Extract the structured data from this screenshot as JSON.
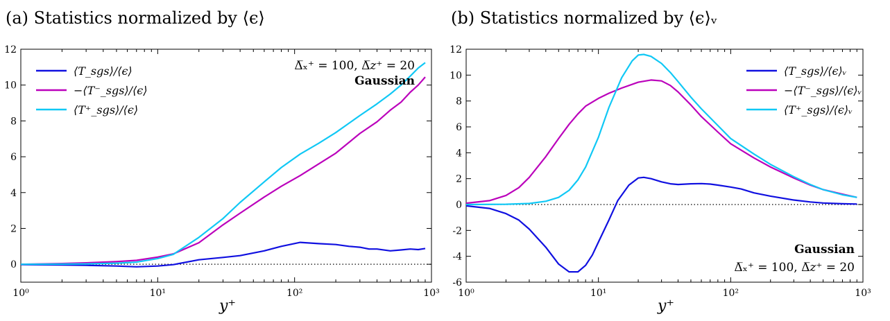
{
  "chart_data": [
    {
      "type": "line",
      "panel_title": "(a) Statistics normalized by ⟨ϵ⟩",
      "xlabel": "y⁺",
      "ylabel": "",
      "xscale": "log",
      "xlim": [
        1,
        1000
      ],
      "ylim": [
        -1,
        12
      ],
      "x_ticks": [
        1,
        10,
        100,
        1000
      ],
      "x_tick_labels": [
        "10⁰",
        "10¹",
        "10²",
        "10³"
      ],
      "y_ticks": [
        0,
        2,
        4,
        6,
        8,
        10,
        12
      ],
      "y_tick_labels": [
        "0",
        "2",
        "4",
        "6",
        "8",
        "10",
        "12"
      ],
      "grid": false,
      "legend_position": "top-left",
      "reference_line": {
        "y": 0,
        "style": "dotted"
      },
      "annotations": [
        {
          "text": "Δ̅ₓ⁺ = 100, Δ̅𝑧⁺ = 20",
          "position": "top-right"
        },
        {
          "text": "Gaussian",
          "position": "top-right",
          "bold": true
        }
      ],
      "series": [
        {
          "name": "⟨T_sgs⟩/⟨ϵ⟩",
          "color": "#1010e0",
          "x": [
            1,
            2,
            3,
            5,
            7,
            10,
            13,
            20,
            30,
            40,
            60,
            80,
            110,
            150,
            200,
            250,
            300,
            350,
            400,
            500,
            600,
            700,
            800,
            900
          ],
          "y": [
            -0.02,
            -0.04,
            -0.06,
            -0.1,
            -0.14,
            -0.1,
            -0.02,
            0.25,
            0.38,
            0.48,
            0.75,
            1.0,
            1.22,
            1.15,
            1.1,
            1.0,
            0.95,
            0.85,
            0.85,
            0.75,
            0.8,
            0.85,
            0.82,
            0.88
          ]
        },
        {
          "name": "−⟨T⁻_sgs⟩/⟨ϵ⟩",
          "color": "#bb00bb",
          "x": [
            1,
            2,
            3,
            5,
            7,
            10,
            13,
            20,
            30,
            40,
            60,
            80,
            110,
            150,
            200,
            300,
            400,
            500,
            600,
            700,
            800,
            900
          ],
          "y": [
            0.0,
            0.04,
            0.08,
            0.15,
            0.22,
            0.4,
            0.58,
            1.2,
            2.2,
            2.85,
            3.75,
            4.35,
            4.95,
            5.6,
            6.2,
            7.3,
            7.95,
            8.6,
            9.05,
            9.6,
            10.0,
            10.45
          ]
        },
        {
          "name": "⟨T⁺_sgs⟩/⟨ϵ⟩",
          "color": "#10c8f5",
          "x": [
            1,
            2,
            3,
            5,
            7,
            10,
            13,
            20,
            30,
            40,
            60,
            80,
            110,
            150,
            200,
            300,
            400,
            500,
            600,
            700,
            800,
            900
          ],
          "y": [
            0.0,
            0.01,
            0.02,
            0.06,
            0.12,
            0.32,
            0.55,
            1.5,
            2.55,
            3.45,
            4.6,
            5.4,
            6.15,
            6.75,
            7.35,
            8.3,
            8.95,
            9.5,
            10.0,
            10.5,
            10.95,
            11.25
          ]
        }
      ]
    },
    {
      "type": "line",
      "panel_title": "(b) Statistics normalized by ⟨ϵ⟩ᵥ",
      "xlabel": "y⁺",
      "ylabel": "",
      "xscale": "log",
      "xlim": [
        1,
        1000
      ],
      "ylim": [
        -6,
        12
      ],
      "x_ticks": [
        1,
        10,
        100,
        1000
      ],
      "x_tick_labels": [
        "10⁰",
        "10¹",
        "10²",
        "10³"
      ],
      "y_ticks": [
        -6,
        -4,
        -2,
        0,
        2,
        4,
        6,
        8,
        10,
        12
      ],
      "y_tick_labels": [
        "-6",
        "-4",
        "-2",
        "0",
        "2",
        "4",
        "6",
        "8",
        "10",
        "12"
      ],
      "grid": false,
      "legend_position": "top-right",
      "reference_line": {
        "y": 0,
        "style": "dotted"
      },
      "annotations": [
        {
          "text": "Gaussian",
          "position": "bottom-right",
          "bold": true
        },
        {
          "text": "Δ̅ₓ⁺ = 100, Δ̅𝑧⁺ = 20",
          "position": "bottom-right"
        }
      ],
      "series": [
        {
          "name": "⟨T_sgs⟩/⟨ϵ⟩ᵥ",
          "color": "#1010e0",
          "x": [
            1,
            1.5,
            2,
            2.5,
            3,
            4,
            5,
            6,
            7,
            8,
            9,
            10,
            12,
            14,
            17,
            20,
            22,
            25,
            30,
            35,
            40,
            50,
            60,
            70,
            80,
            100,
            120,
            150,
            200,
            300,
            400,
            500,
            700,
            900
          ],
          "y": [
            -0.1,
            -0.3,
            -0.7,
            -1.2,
            -1.9,
            -3.3,
            -4.6,
            -5.2,
            -5.2,
            -4.7,
            -3.9,
            -2.9,
            -1.2,
            0.3,
            1.5,
            2.05,
            2.1,
            2.0,
            1.75,
            1.6,
            1.55,
            1.6,
            1.62,
            1.58,
            1.5,
            1.35,
            1.2,
            0.9,
            0.65,
            0.35,
            0.2,
            0.12,
            0.06,
            0.04
          ]
        },
        {
          "name": "−⟨T⁻_sgs⟩/⟨ϵ⟩ᵥ",
          "color": "#bb00bb",
          "x": [
            1,
            1.5,
            2,
            2.5,
            3,
            4,
            5,
            6,
            7,
            8,
            10,
            12,
            15,
            20,
            25,
            30,
            35,
            40,
            50,
            60,
            80,
            100,
            150,
            200,
            300,
            400,
            500,
            700,
            900
          ],
          "y": [
            0.1,
            0.3,
            0.7,
            1.3,
            2.1,
            3.7,
            5.1,
            6.2,
            7.0,
            7.6,
            8.2,
            8.6,
            9.0,
            9.45,
            9.62,
            9.55,
            9.2,
            8.7,
            7.7,
            6.8,
            5.6,
            4.7,
            3.6,
            2.9,
            2.05,
            1.5,
            1.15,
            0.8,
            0.55
          ]
        },
        {
          "name": "⟨T⁺_sgs⟩/⟨ϵ⟩ᵥ",
          "color": "#10c8f5",
          "x": [
            1,
            2,
            3,
            4,
            5,
            6,
            7,
            8,
            10,
            12,
            15,
            18,
            20,
            22,
            25,
            30,
            35,
            40,
            50,
            60,
            80,
            100,
            150,
            200,
            300,
            400,
            500,
            700,
            900
          ],
          "y": [
            0.0,
            0.02,
            0.08,
            0.25,
            0.55,
            1.1,
            1.9,
            2.9,
            5.2,
            7.5,
            9.8,
            11.1,
            11.55,
            11.6,
            11.45,
            10.9,
            10.2,
            9.5,
            8.3,
            7.4,
            6.1,
            5.1,
            3.9,
            3.1,
            2.15,
            1.55,
            1.15,
            0.75,
            0.55
          ]
        }
      ]
    }
  ]
}
